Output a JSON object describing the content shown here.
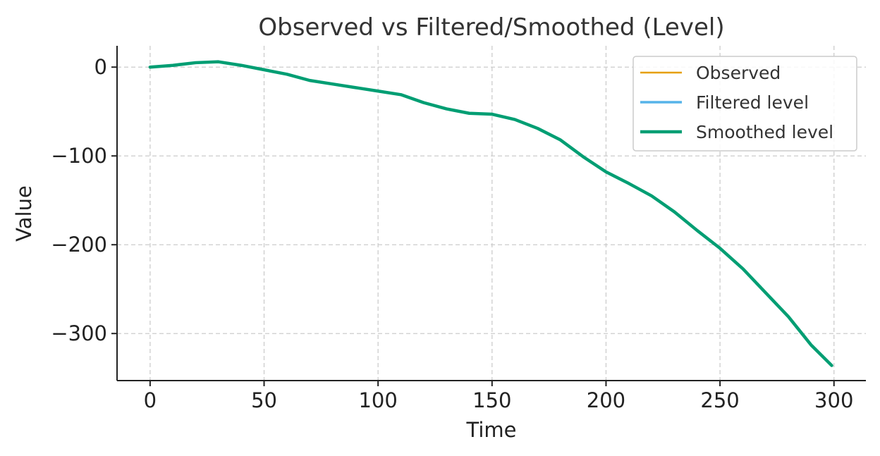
{
  "chart_data": {
    "type": "line",
    "title": "Observed vs Filtered/Smoothed (Level)",
    "xlabel": "Time",
    "ylabel": "Value",
    "xlim": [
      -14.5,
      314
    ],
    "ylim": [
      -353,
      24
    ],
    "xticks": [
      0,
      50,
      100,
      150,
      200,
      250,
      300
    ],
    "yticks": [
      0,
      -100,
      -200,
      -300
    ],
    "ytick_labels": [
      "0",
      "−100",
      "−200",
      "−300"
    ],
    "grid": true,
    "legend_position": "top-right",
    "x": [
      0,
      10,
      20,
      30,
      40,
      50,
      60,
      70,
      80,
      90,
      100,
      110,
      120,
      130,
      140,
      150,
      160,
      170,
      180,
      190,
      200,
      210,
      220,
      230,
      240,
      250,
      260,
      270,
      280,
      290,
      299
    ],
    "series": [
      {
        "name": "Observed",
        "color": "#E69F00",
        "values": [
          0,
          2,
          5,
          6,
          2,
          -3,
          -8,
          -15,
          -19,
          -23,
          -27,
          -31,
          -40,
          -47,
          -52,
          -53,
          -59,
          -69,
          -82,
          -101,
          -118,
          -131,
          -145,
          -163,
          -184,
          -204,
          -227,
          -254,
          -281,
          -313,
          -336
        ]
      },
      {
        "name": "Filtered level",
        "color": "#56B4E9",
        "values": [
          0,
          2,
          5,
          6,
          2,
          -3,
          -8,
          -15,
          -19,
          -23,
          -27,
          -31,
          -40,
          -47,
          -52,
          -53,
          -59,
          -69,
          -82,
          -101,
          -118,
          -131,
          -145,
          -163,
          -184,
          -204,
          -227,
          -254,
          -281,
          -313,
          -336
        ]
      },
      {
        "name": "Smoothed level",
        "color": "#009E73",
        "values": [
          0,
          2,
          5,
          6,
          2,
          -3,
          -8,
          -15,
          -19,
          -23,
          -27,
          -31,
          -40,
          -47,
          -52,
          -53,
          -59,
          -69,
          -82,
          -101,
          -118,
          -131,
          -145,
          -163,
          -184,
          -204,
          -227,
          -254,
          -281,
          -313,
          -336
        ]
      }
    ]
  }
}
